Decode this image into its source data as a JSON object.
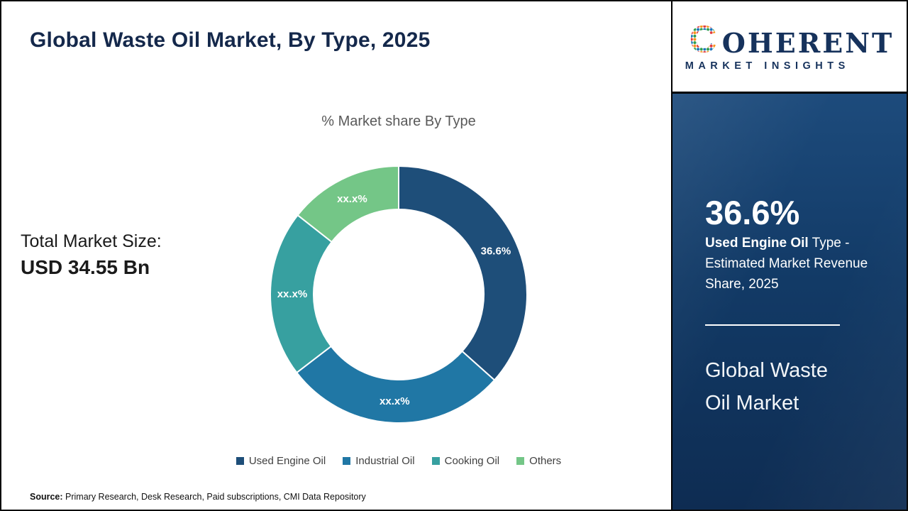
{
  "header": {
    "title": "Global Waste Oil Market, By Type, 2025"
  },
  "market_size": {
    "label": "Total Market Size:",
    "value": "USD 34.55 Bn"
  },
  "chart_data": {
    "type": "pie",
    "donut": true,
    "title": "% Market share By Type",
    "categories": [
      "Used Engine Oil",
      "Industrial Oil",
      "Cooking Oil",
      "Others"
    ],
    "values": [
      36.6,
      28.0,
      21.0,
      14.4
    ],
    "labels": [
      "36.6%",
      "xx.x%",
      "xx.x%",
      "xx.x%"
    ],
    "colors": [
      "#1e4e79",
      "#2077a5",
      "#37a0a0",
      "#74c687"
    ],
    "legend_position": "bottom",
    "label_color": "#ffffff"
  },
  "source": {
    "label": "Source:",
    "text": " Primary Research, Desk Research, Paid subscriptions, CMI Data Repository"
  },
  "logo": {
    "word_rest": "OHERENT",
    "subtitle": "MARKET INSIGHTS"
  },
  "side_panel": {
    "stat_value": "36.6%",
    "stat_highlight": "Used Engine Oil",
    "stat_rest": " Type - Estimated Market Revenue Share, 2025",
    "title": "Global Waste Oil Market",
    "background": "#123a66"
  }
}
